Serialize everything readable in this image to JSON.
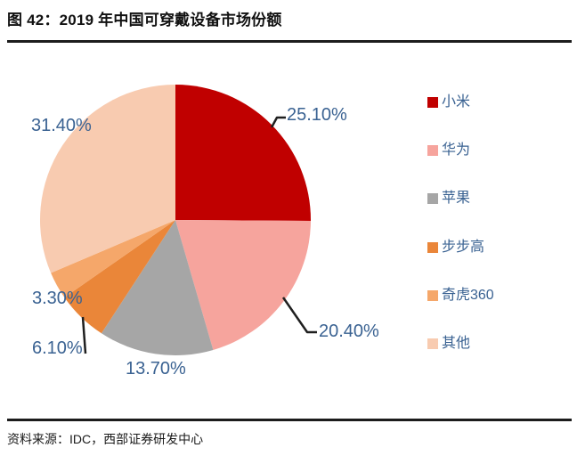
{
  "figure": {
    "title": "图 42：2019 年中国可穿戴设备市场份额",
    "source": "资料来源：IDC，西部证券研发中心"
  },
  "chart_data": {
    "type": "pie",
    "title": "2019 年中国可穿戴设备市场份额",
    "legend_position": "right",
    "start_angle_deg": 0,
    "direction": "clockwise",
    "label_color": "#3A6292",
    "series": [
      {
        "name": "小米",
        "value": 25.1,
        "label": "25.10%",
        "color": "#C00000"
      },
      {
        "name": "华为",
        "value": 20.4,
        "label": "20.40%",
        "color": "#F6A49D"
      },
      {
        "name": "苹果",
        "value": 13.7,
        "label": "13.70%",
        "color": "#A6A6A6"
      },
      {
        "name": "步步高",
        "value": 6.1,
        "label": "6.10%",
        "color": "#EA8639"
      },
      {
        "name": "奇虎360",
        "value": 3.3,
        "label": "3.30%",
        "color": "#F5A76A"
      },
      {
        "name": "其他",
        "value": 31.4,
        "label": "31.40%",
        "color": "#F8CBB0"
      }
    ]
  }
}
